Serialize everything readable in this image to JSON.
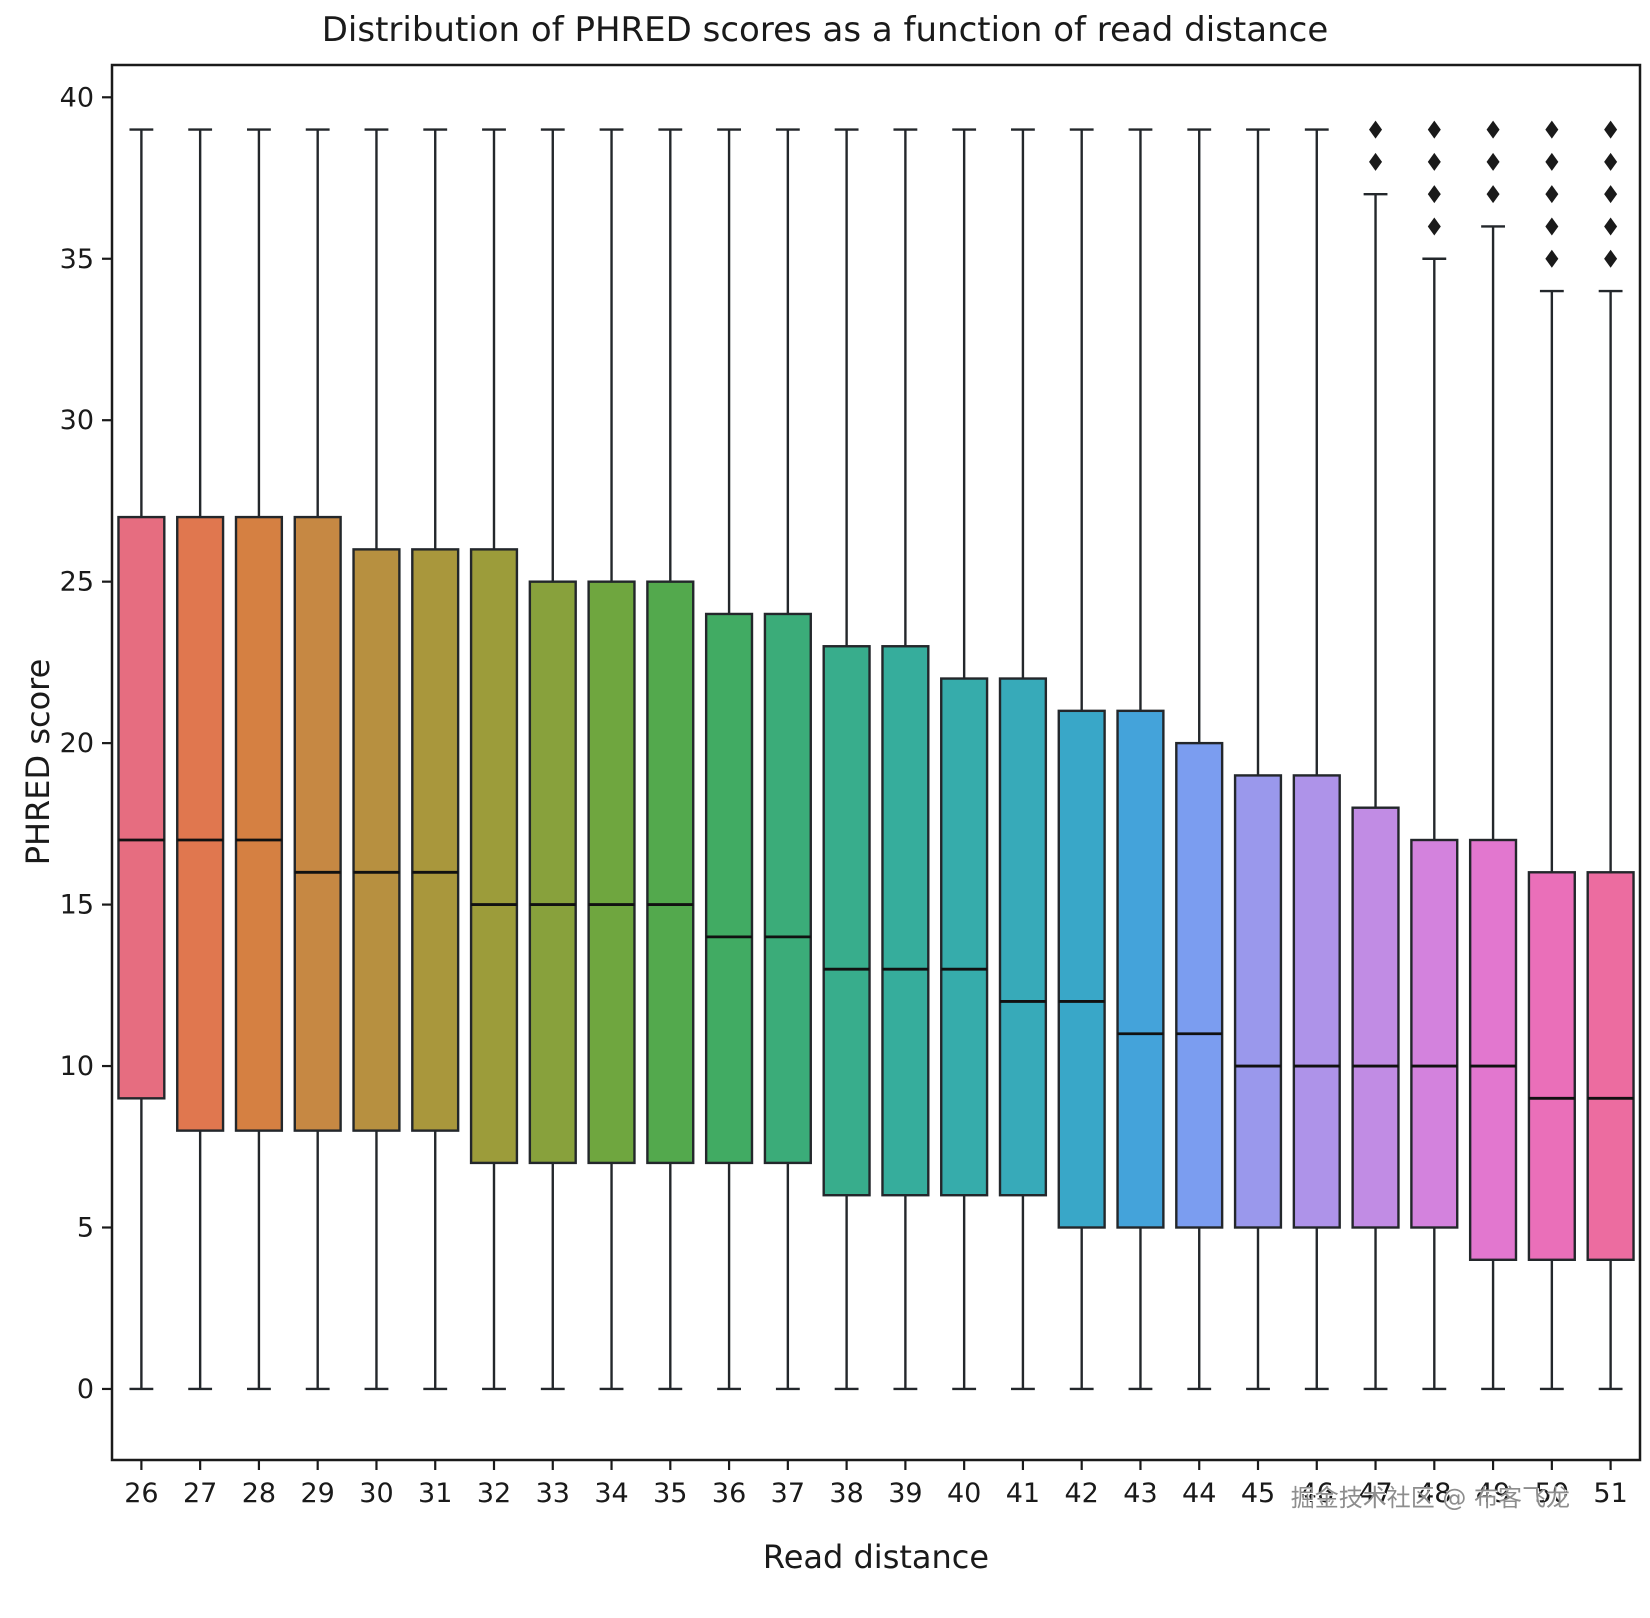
{
  "watermark": "掘金技术社区 @ 布客飞龙",
  "chart_data": {
    "type": "box",
    "title": "Distribution of PHRED scores as a function of read distance",
    "xlabel": "Read distance",
    "ylabel": "PHRED score",
    "ylim": [
      -2.2,
      41.0
    ],
    "yticks": [
      0,
      5,
      10,
      15,
      20,
      25,
      30,
      35,
      40
    ],
    "grid": false,
    "legend": "none",
    "edge_color": "#23272b",
    "median_color": "#111111",
    "outlier_marker": "diamond",
    "categories": [
      26,
      27,
      28,
      29,
      30,
      31,
      32,
      33,
      34,
      35,
      36,
      37,
      38,
      39,
      40,
      41,
      42,
      43,
      44,
      45,
      46,
      47,
      48,
      49,
      50,
      51
    ],
    "boxes": [
      {
        "category": 26,
        "whisker_low": 0,
        "q1": 9,
        "median": 17,
        "q3": 27,
        "whisker_high": 39,
        "outliers": [],
        "color": "#e66d80"
      },
      {
        "category": 27,
        "whisker_low": 0,
        "q1": 8,
        "median": 17,
        "q3": 27,
        "whisker_high": 39,
        "outliers": [],
        "color": "#e0774f"
      },
      {
        "category": 28,
        "whisker_low": 0,
        "q1": 8,
        "median": 17,
        "q3": 27,
        "whisker_high": 39,
        "outliers": [],
        "color": "#d58042"
      },
      {
        "category": 29,
        "whisker_low": 0,
        "q1": 8,
        "median": 16,
        "q3": 27,
        "whisker_high": 39,
        "outliers": [],
        "color": "#c68843"
      },
      {
        "category": 30,
        "whisker_low": 0,
        "q1": 8,
        "median": 16,
        "q3": 26,
        "whisker_high": 39,
        "outliers": [],
        "color": "#b79040"
      },
      {
        "category": 31,
        "whisker_low": 0,
        "q1": 8,
        "median": 16,
        "q3": 26,
        "whisker_high": 39,
        "outliers": [],
        "color": "#a9973c"
      },
      {
        "category": 32,
        "whisker_low": 0,
        "q1": 7,
        "median": 15,
        "q3": 26,
        "whisker_high": 39,
        "outliers": [],
        "color": "#9c9c3a"
      },
      {
        "category": 33,
        "whisker_low": 0,
        "q1": 7,
        "median": 15,
        "q3": 25,
        "whisker_high": 39,
        "outliers": [],
        "color": "#88a13c"
      },
      {
        "category": 34,
        "whisker_low": 0,
        "q1": 7,
        "median": 15,
        "q3": 25,
        "whisker_high": 39,
        "outliers": [],
        "color": "#6fa63f"
      },
      {
        "category": 35,
        "whisker_low": 0,
        "q1": 7,
        "median": 15,
        "q3": 25,
        "whisker_high": 39,
        "outliers": [],
        "color": "#53a94d"
      },
      {
        "category": 36,
        "whisker_low": 0,
        "q1": 7,
        "median": 14,
        "q3": 24,
        "whisker_high": 39,
        "outliers": [],
        "color": "#41ab63"
      },
      {
        "category": 37,
        "whisker_low": 0,
        "q1": 7,
        "median": 14,
        "q3": 24,
        "whisker_high": 39,
        "outliers": [],
        "color": "#3bac79"
      },
      {
        "category": 38,
        "whisker_low": 0,
        "q1": 6,
        "median": 13,
        "q3": 23,
        "whisker_high": 39,
        "outliers": [],
        "color": "#38ad8c"
      },
      {
        "category": 39,
        "whisker_low": 0,
        "q1": 6,
        "median": 13,
        "q3": 23,
        "whisker_high": 39,
        "outliers": [],
        "color": "#36ad9c"
      },
      {
        "category": 40,
        "whisker_low": 0,
        "q1": 6,
        "median": 13,
        "q3": 22,
        "whisker_high": 39,
        "outliers": [],
        "color": "#36acab"
      },
      {
        "category": 41,
        "whisker_low": 0,
        "q1": 6,
        "median": 12,
        "q3": 22,
        "whisker_high": 39,
        "outliers": [],
        "color": "#37aab9"
      },
      {
        "category": 42,
        "whisker_low": 0,
        "q1": 5,
        "median": 12,
        "q3": 21,
        "whisker_high": 39,
        "outliers": [],
        "color": "#39a7c8"
      },
      {
        "category": 43,
        "whisker_low": 0,
        "q1": 5,
        "median": 11,
        "q3": 21,
        "whisker_high": 39,
        "outliers": [],
        "color": "#44a3da"
      },
      {
        "category": 44,
        "whisker_low": 0,
        "q1": 5,
        "median": 11,
        "q3": 20,
        "whisker_high": 39,
        "outliers": [],
        "color": "#7b9df0"
      },
      {
        "category": 45,
        "whisker_low": 0,
        "q1": 5,
        "median": 10,
        "q3": 19,
        "whisker_high": 39,
        "outliers": [],
        "color": "#9a98ec"
      },
      {
        "category": 46,
        "whisker_low": 0,
        "q1": 5,
        "median": 10,
        "q3": 19,
        "whisker_high": 39,
        "outliers": [],
        "color": "#ae93e9"
      },
      {
        "category": 47,
        "whisker_low": 0,
        "q1": 5,
        "median": 10,
        "q3": 18,
        "whisker_high": 37,
        "outliers": [
          38,
          39
        ],
        "color": "#c18ce4"
      },
      {
        "category": 48,
        "whisker_low": 0,
        "q1": 5,
        "median": 10,
        "q3": 17,
        "whisker_high": 35,
        "outliers": [
          36,
          37,
          38,
          39
        ],
        "color": "#d382dd"
      },
      {
        "category": 49,
        "whisker_low": 0,
        "q1": 4,
        "median": 10,
        "q3": 17,
        "whisker_high": 36,
        "outliers": [
          37,
          38,
          39
        ],
        "color": "#e277cf"
      },
      {
        "category": 50,
        "whisker_low": 0,
        "q1": 4,
        "median": 9,
        "q3": 16,
        "whisker_high": 34,
        "outliers": [
          35,
          36,
          37,
          38,
          39
        ],
        "color": "#ea6fb9"
      },
      {
        "category": 51,
        "whisker_low": 0,
        "q1": 4,
        "median": 9,
        "q3": 16,
        "whisker_high": 34,
        "outliers": [
          35,
          36,
          37,
          38,
          39
        ],
        "color": "#ec6ca0"
      }
    ]
  }
}
